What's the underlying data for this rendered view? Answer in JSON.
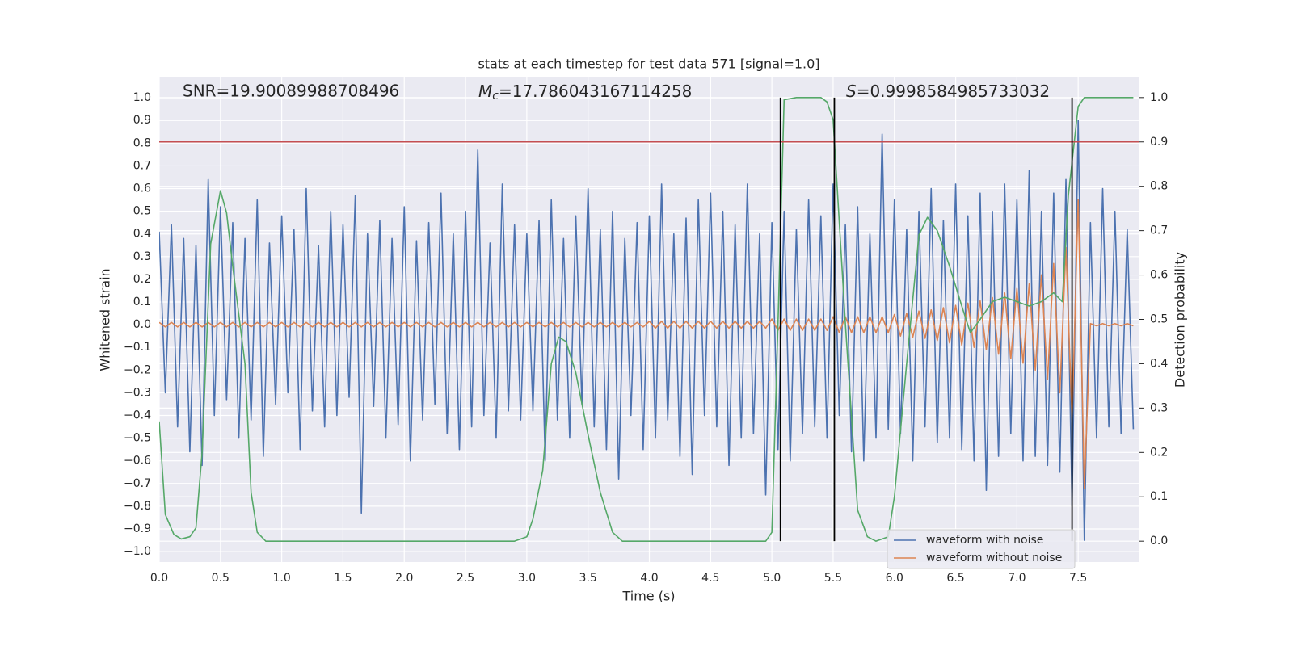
{
  "chart_data": {
    "type": "line",
    "title": "stats at each timestep for test data 571 [signal=1.0]",
    "xlabel": "Time (s)",
    "ylabel": "Whitened strain",
    "y2label": "Detection probability",
    "xlim": [
      0,
      8
    ],
    "ylim": [
      -1.046,
      1.093
    ],
    "y2lim": [
      -0.047,
      1.047
    ],
    "grid": true,
    "legend": "lower right",
    "xticks": [
      {
        "value": 0,
        "label": "0.0"
      },
      {
        "value": 0.5,
        "label": "0.5"
      },
      {
        "value": 1,
        "label": "1.0"
      },
      {
        "value": 1.5,
        "label": "1.5"
      },
      {
        "value": 2,
        "label": "2.0"
      },
      {
        "value": 2.5,
        "label": "2.5"
      },
      {
        "value": 3,
        "label": "3.0"
      },
      {
        "value": 3.5,
        "label": "3.5"
      },
      {
        "value": 4,
        "label": "4.0"
      },
      {
        "value": 4.5,
        "label": "4.5"
      },
      {
        "value": 5,
        "label": "5.0"
      },
      {
        "value": 5.5,
        "label": "5.5"
      },
      {
        "value": 6,
        "label": "6.0"
      },
      {
        "value": 6.5,
        "label": "6.5"
      },
      {
        "value": 7,
        "label": "7.0"
      },
      {
        "value": 7.5,
        "label": "7.5"
      }
    ],
    "yticks": [
      {
        "value": 1,
        "label": "1.0"
      },
      {
        "value": 0.9,
        "label": "0.9"
      },
      {
        "value": 0.8,
        "label": "0.8"
      },
      {
        "value": 0.7,
        "label": "0.7"
      },
      {
        "value": 0.6,
        "label": "0.6"
      },
      {
        "value": 0.5,
        "label": "0.5"
      },
      {
        "value": 0.4,
        "label": "0.4"
      },
      {
        "value": 0.3,
        "label": "0.3"
      },
      {
        "value": 0.2,
        "label": "0.2"
      },
      {
        "value": 0.1,
        "label": "0.1"
      },
      {
        "value": 0,
        "label": "0.0"
      },
      {
        "value": -0.1,
        "label": "−0.1"
      },
      {
        "value": -0.2,
        "label": "−0.2"
      },
      {
        "value": -0.3,
        "label": "−0.3"
      },
      {
        "value": -0.4,
        "label": "−0.4"
      },
      {
        "value": -0.5,
        "label": "−0.5"
      },
      {
        "value": -0.6,
        "label": "−0.6"
      },
      {
        "value": -0.7,
        "label": "−0.7"
      },
      {
        "value": -0.8,
        "label": "−0.8"
      },
      {
        "value": -0.9,
        "label": "−0.9"
      },
      {
        "value": -1,
        "label": "−1.0"
      }
    ],
    "y2ticks": [
      {
        "value": 0,
        "label": "0.0"
      },
      {
        "value": 0.1,
        "label": "0.1"
      },
      {
        "value": 0.2,
        "label": "0.2"
      },
      {
        "value": 0.3,
        "label": "0.3"
      },
      {
        "value": 0.4,
        "label": "0.4"
      },
      {
        "value": 0.5,
        "label": "0.5"
      },
      {
        "value": 0.6,
        "label": "0.6"
      },
      {
        "value": 0.7,
        "label": "0.7"
      },
      {
        "value": 0.8,
        "label": "0.8"
      },
      {
        "value": 0.9,
        "label": "0.9"
      },
      {
        "value": 1,
        "label": "1.0"
      }
    ],
    "annotations": [
      {
        "text": "SNR=19.90089988708496"
      },
      {
        "symbol": "M",
        "subscript": "c",
        "text": "=17.786043167114258"
      },
      {
        "symbol": "S",
        "text": "=0.9998584985733032"
      }
    ],
    "hline": {
      "value": 0.9,
      "axis": "y2",
      "color": "#c44e52"
    },
    "vlines": {
      "x": [
        5.07,
        5.51,
        7.45
      ],
      "ymin": 0,
      "ymax": 1,
      "axis": "y2",
      "color": "#000000"
    },
    "x": [
      0,
      0.05,
      0.1,
      0.15,
      0.2,
      0.25,
      0.3,
      0.35,
      0.4,
      0.45,
      0.5,
      0.55,
      0.6,
      0.65,
      0.7,
      0.75,
      0.8,
      0.85,
      0.9,
      0.95,
      1,
      1.05,
      1.1,
      1.15,
      1.2,
      1.25,
      1.3,
      1.35,
      1.4,
      1.45,
      1.5,
      1.55,
      1.6,
      1.65,
      1.7,
      1.75,
      1.8,
      1.85,
      1.9,
      1.95,
      2,
      2.05,
      2.1,
      2.15,
      2.2,
      2.25,
      2.3,
      2.35,
      2.4,
      2.45,
      2.5,
      2.55,
      2.6,
      2.65,
      2.7,
      2.75,
      2.8,
      2.85,
      2.9,
      2.95,
      3,
      3.05,
      3.1,
      3.15,
      3.2,
      3.25,
      3.3,
      3.35,
      3.4,
      3.45,
      3.5,
      3.55,
      3.6,
      3.65,
      3.7,
      3.75,
      3.8,
      3.85,
      3.9,
      3.95,
      4,
      4.05,
      4.1,
      4.15,
      4.2,
      4.25,
      4.3,
      4.35,
      4.4,
      4.45,
      4.5,
      4.55,
      4.6,
      4.65,
      4.7,
      4.75,
      4.8,
      4.85,
      4.9,
      4.95,
      5,
      5.05,
      5.1,
      5.15,
      5.2,
      5.25,
      5.3,
      5.35,
      5.4,
      5.45,
      5.5,
      5.55,
      5.6,
      5.65,
      5.7,
      5.75,
      5.8,
      5.85,
      5.9,
      5.95,
      6,
      6.05,
      6.1,
      6.15,
      6.2,
      6.25,
      6.3,
      6.35,
      6.4,
      6.45,
      6.5,
      6.55,
      6.6,
      6.65,
      6.7,
      6.75,
      6.8,
      6.85,
      6.9,
      6.95,
      7,
      7.05,
      7.1,
      7.15,
      7.2,
      7.25,
      7.3,
      7.35,
      7.4,
      7.45,
      7.5,
      7.55,
      7.6,
      7.65,
      7.7,
      7.75,
      7.8,
      7.85,
      7.9,
      7.95
    ],
    "series": [
      {
        "name": "waveform with noise",
        "color": "#4c72b0",
        "values": [
          0.41,
          -0.3,
          0.44,
          -0.45,
          0.38,
          -0.56,
          0.35,
          -0.62,
          0.64,
          -0.4,
          0.52,
          -0.33,
          0.45,
          -0.5,
          0.38,
          -0.42,
          0.55,
          -0.58,
          0.36,
          -0.35,
          0.48,
          -0.3,
          0.42,
          -0.55,
          0.6,
          -0.38,
          0.35,
          -0.45,
          0.5,
          -0.4,
          0.44,
          -0.32,
          0.57,
          -0.83,
          0.4,
          -0.36,
          0.46,
          -0.5,
          0.38,
          -0.44,
          0.52,
          -0.6,
          0.37,
          -0.42,
          0.45,
          -0.35,
          0.58,
          -0.48,
          0.4,
          -0.55,
          0.5,
          -0.45,
          0.77,
          -0.4,
          0.36,
          -0.5,
          0.62,
          -0.38,
          0.44,
          -0.42,
          0.4,
          -0.38,
          0.46,
          -0.6,
          0.55,
          -0.42,
          0.38,
          -0.5,
          0.48,
          -0.35,
          0.6,
          -0.45,
          0.42,
          -0.55,
          0.5,
          -0.68,
          0.38,
          -0.4,
          0.45,
          -0.55,
          0.48,
          -0.5,
          0.62,
          -0.42,
          0.4,
          -0.58,
          0.47,
          -0.66,
          0.55,
          -0.4,
          0.58,
          -0.45,
          0.5,
          -0.62,
          0.44,
          -0.5,
          0.62,
          -0.48,
          0.4,
          -0.75,
          0.45,
          -0.55,
          0.5,
          -0.6,
          0.42,
          -0.48,
          0.55,
          -0.45,
          0.48,
          -0.5,
          0.62,
          -0.4,
          0.44,
          -0.56,
          0.52,
          -0.6,
          0.4,
          -0.5,
          0.84,
          -0.46,
          0.55,
          -0.48,
          0.42,
          -0.6,
          0.5,
          -0.45,
          0.6,
          -0.52,
          0.46,
          -0.5,
          0.62,
          -0.55,
          0.48,
          -0.6,
          0.58,
          -0.73,
          0.5,
          -0.58,
          0.62,
          -0.48,
          0.55,
          -0.6,
          0.68,
          -0.58,
          0.5,
          -0.62,
          0.58,
          -0.65,
          0.64,
          -0.8,
          0.9,
          -0.95,
          0.45,
          -0.5,
          0.6,
          -0.45,
          0.5,
          -0.48,
          0.42,
          -0.46
        ]
      },
      {
        "name": "waveform without noise",
        "color": "#dd8452",
        "values": [
          0.01,
          -0.01,
          0.01,
          -0.01,
          0.01,
          -0.01,
          0.01,
          -0.01,
          0.01,
          -0.01,
          0.01,
          -0.01,
          0.01,
          -0.01,
          0.01,
          -0.01,
          0.01,
          -0.01,
          0.01,
          -0.01,
          0.01,
          -0.01,
          0.01,
          -0.01,
          0.01,
          -0.01,
          0.01,
          -0.01,
          0.01,
          -0.01,
          0.01,
          -0.01,
          0.01,
          -0.01,
          0.01,
          -0.01,
          0.01,
          -0.01,
          0.01,
          -0.01,
          0.01,
          -0.01,
          0.01,
          -0.01,
          0.01,
          -0.01,
          0.01,
          -0.01,
          0.01,
          -0.01,
          0.01,
          -0.01,
          0.01,
          -0.01,
          0.01,
          -0.01,
          0.01,
          -0.01,
          0.01,
          -0.01,
          0.01,
          -0.01,
          0.01,
          -0.01,
          0.01,
          -0.01,
          0.01,
          -0.01,
          0.01,
          -0.01,
          0.01,
          -0.01,
          0.01,
          -0.01,
          0.01,
          -0.01,
          0.01,
          -0.01,
          0.01,
          -0.01,
          0.015,
          -0.015,
          0.015,
          -0.015,
          0.015,
          -0.015,
          0.015,
          -0.015,
          0.015,
          -0.015,
          0.015,
          -0.015,
          0.015,
          -0.015,
          0.015,
          -0.015,
          0.015,
          -0.015,
          0.015,
          -0.015,
          0.025,
          -0.025,
          0.025,
          -0.025,
          0.025,
          -0.025,
          0.025,
          -0.025,
          0.025,
          -0.025,
          0.035,
          -0.035,
          0.035,
          -0.035,
          0.035,
          -0.035,
          0.035,
          -0.035,
          0.035,
          -0.035,
          0.045,
          -0.05,
          0.05,
          -0.055,
          0.06,
          -0.06,
          0.065,
          -0.07,
          0.075,
          -0.08,
          0.085,
          -0.09,
          0.095,
          -0.1,
          0.105,
          -0.11,
          0.12,
          -0.13,
          0.14,
          -0.15,
          0.16,
          -0.17,
          0.18,
          -0.2,
          0.22,
          -0.24,
          0.27,
          -0.3,
          0.34,
          -0.42,
          0.55,
          -0.72,
          0.005,
          -0.005,
          0.005,
          -0.005,
          0.005,
          -0.005,
          0.005,
          -0.005
        ]
      },
      {
        "color": "#55a868",
        "axis": "y2",
        "x": [
          0,
          0.05,
          0.12,
          0.18,
          0.25,
          0.3,
          0.35,
          0.42,
          0.5,
          0.55,
          0.6,
          0.7,
          0.75,
          0.8,
          0.87,
          2.9,
          3.0,
          3.05,
          3.13,
          3.2,
          3.26,
          3.32,
          3.4,
          3.5,
          3.6,
          3.7,
          3.78,
          4.95,
          5.0,
          5.05,
          5.1,
          5.2,
          5.4,
          5.45,
          5.5,
          5.6,
          5.7,
          5.78,
          5.85,
          5.95,
          6.0,
          6.1,
          6.2,
          6.27,
          6.35,
          6.45,
          6.55,
          6.62,
          6.7,
          6.8,
          6.9,
          7.0,
          7.1,
          7.2,
          7.3,
          7.37,
          7.42,
          7.5,
          7.55,
          7.95
        ],
        "values": [
          0.27,
          0.06,
          0.015,
          0.005,
          0.01,
          0.03,
          0.2,
          0.67,
          0.79,
          0.74,
          0.62,
          0.4,
          0.11,
          0.02,
          0,
          0,
          0.01,
          0.05,
          0.16,
          0.4,
          0.46,
          0.45,
          0.38,
          0.24,
          0.11,
          0.02,
          0,
          0,
          0.02,
          0.49,
          0.995,
          1,
          1,
          0.99,
          0.95,
          0.49,
          0.07,
          0.01,
          0,
          0.01,
          0.1,
          0.4,
          0.69,
          0.73,
          0.7,
          0.62,
          0.53,
          0.47,
          0.5,
          0.54,
          0.55,
          0.54,
          0.53,
          0.54,
          0.56,
          0.54,
          0.78,
          0.98,
          1,
          1
        ]
      }
    ]
  }
}
